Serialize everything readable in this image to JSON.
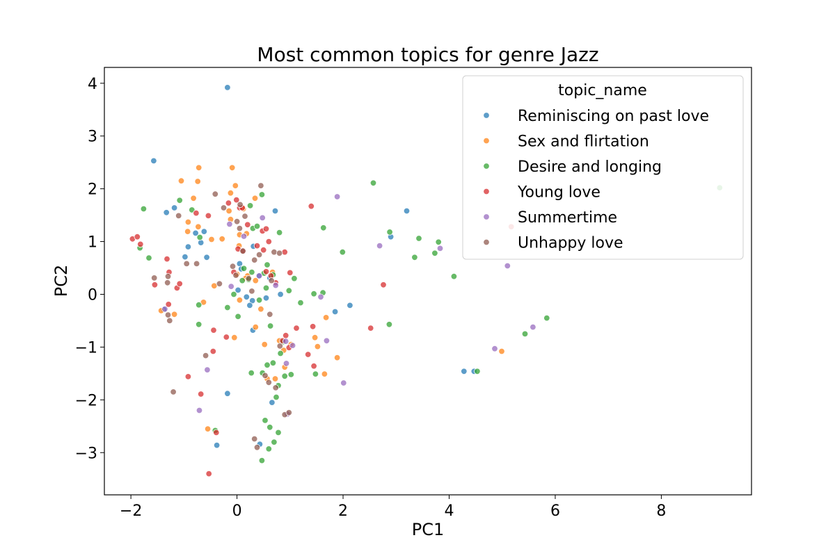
{
  "chart_data": {
    "type": "scatter",
    "title": "Most common topics for genre Jazz",
    "xlabel": "PC1",
    "ylabel": "PC2",
    "xlim": [
      -2.5,
      9.7
    ],
    "ylim": [
      -3.8,
      4.3
    ],
    "xticks": [
      -2,
      0,
      2,
      4,
      6,
      8
    ],
    "yticks": [
      -3,
      -2,
      -1,
      0,
      1,
      2,
      3,
      4
    ],
    "xtick_labels": [
      "−2",
      "0",
      "2",
      "4",
      "6",
      "8"
    ],
    "ytick_labels": [
      "−3",
      "−2",
      "−1",
      "0",
      "1",
      "2",
      "3",
      "4"
    ],
    "grid": false,
    "legend": {
      "title": "topic_name",
      "placement": "top-right"
    },
    "series": [
      {
        "name": "Reminiscing on past love",
        "color": "#1f77b4",
        "points": [
          [
            -0.18,
            3.92
          ],
          [
            -1.57,
            2.53
          ],
          [
            -1.33,
            1.55
          ],
          [
            -1.18,
            1.64
          ],
          [
            -0.98,
            0.71
          ],
          [
            -0.92,
            0.9
          ],
          [
            -0.78,
            1.16
          ],
          [
            -0.62,
            1.19
          ],
          [
            -0.68,
            0.98
          ],
          [
            -0.57,
            0.7
          ],
          [
            -1.38,
            -0.29
          ],
          [
            0.72,
            1.58
          ],
          [
            0.31,
            0.91
          ],
          [
            0.05,
            0.58
          ],
          [
            0.18,
            -0.05
          ],
          [
            0.02,
            0.08
          ],
          [
            0.29,
            -0.12
          ],
          [
            0.55,
            -0.07
          ],
          [
            0.41,
            0.35
          ],
          [
            0.62,
            0.31
          ],
          [
            0.82,
            0.0
          ],
          [
            0.3,
            -0.68
          ],
          [
            -0.18,
            -1.88
          ],
          [
            -0.38,
            -2.86
          ],
          [
            0.66,
            -2.05
          ],
          [
            1.85,
            -0.33
          ],
          [
            2.13,
            -0.21
          ],
          [
            2.9,
            1.09
          ],
          [
            3.2,
            1.58
          ],
          [
            4.28,
            -1.46
          ],
          [
            4.47,
            -1.46
          ],
          [
            0.24,
            -0.21
          ],
          [
            0.43,
            -2.84
          ],
          [
            0.08,
            0.48
          ]
        ]
      },
      {
        "name": "Sex and flirtation",
        "color": "#ff7f0e",
        "points": [
          [
            -1.05,
            2.15
          ],
          [
            -0.82,
            1.82
          ],
          [
            -0.72,
            2.4
          ],
          [
            -0.74,
            2.14
          ],
          [
            -0.09,
            2.4
          ],
          [
            -0.12,
            1.92
          ],
          [
            -0.03,
            2.06
          ],
          [
            -0.15,
            1.58
          ],
          [
            0.12,
            1.62
          ],
          [
            0.34,
            1.82
          ],
          [
            -0.92,
            1.37
          ],
          [
            -0.73,
            1.28
          ],
          [
            -0.93,
            1.19
          ],
          [
            -0.48,
            1.04
          ],
          [
            -0.28,
            1.05
          ],
          [
            0.18,
            1.15
          ],
          [
            -0.12,
            1.42
          ],
          [
            0.05,
            1.13
          ],
          [
            0.04,
            0.92
          ],
          [
            0.0,
            0.38
          ],
          [
            0.2,
            0.35
          ],
          [
            0.35,
            0.26
          ],
          [
            -1.43,
            -0.31
          ],
          [
            -1.18,
            -0.38
          ],
          [
            -0.63,
            -0.15
          ],
          [
            -0.43,
            0.16
          ],
          [
            0.05,
            -0.11
          ],
          [
            0.35,
            -0.62
          ],
          [
            -0.05,
            -0.82
          ],
          [
            0.52,
            -0.95
          ],
          [
            0.8,
            -0.88
          ],
          [
            0.88,
            -1.06
          ],
          [
            0.9,
            -1.38
          ],
          [
            1.02,
            -0.95
          ],
          [
            1.47,
            -0.82
          ],
          [
            1.52,
            -0.99
          ],
          [
            1.65,
            -1.51
          ],
          [
            1.89,
            -1.2
          ],
          [
            1.68,
            -0.44
          ],
          [
            0.57,
            -1.6
          ],
          [
            0.72,
            -1.6
          ],
          [
            -0.55,
            -2.55
          ],
          [
            4.99,
            -1.08
          ],
          [
            0.67,
            0.42
          ],
          [
            0.16,
            0.3
          ],
          [
            0.45,
            -0.28
          ]
        ]
      },
      {
        "name": "Desire and longing",
        "color": "#2ca02c",
        "points": [
          [
            -1.76,
            1.62
          ],
          [
            -1.08,
            1.78
          ],
          [
            -0.85,
            1.6
          ],
          [
            -0.7,
            1.08
          ],
          [
            -1.83,
            0.88
          ],
          [
            -1.66,
            0.69
          ],
          [
            -0.72,
            -0.2
          ],
          [
            -0.72,
            -0.57
          ],
          [
            -0.18,
            -0.25
          ],
          [
            -0.06,
            0.0
          ],
          [
            0.02,
            -0.42
          ],
          [
            0.13,
            0.49
          ],
          [
            0.22,
            0.28
          ],
          [
            0.28,
            0.42
          ],
          [
            0.3,
            1.25
          ],
          [
            0.38,
            1.29
          ],
          [
            0.47,
            1.89
          ],
          [
            0.25,
            1.68
          ],
          [
            0.51,
            0.4
          ],
          [
            0.55,
            0.12
          ],
          [
            0.57,
            0.56
          ],
          [
            0.68,
            0.37
          ],
          [
            0.8,
            1.17
          ],
          [
            0.98,
            0.07
          ],
          [
            1.08,
            0.3
          ],
          [
            1.2,
            -0.16
          ],
          [
            1.45,
            0.01
          ],
          [
            1.62,
            0.03
          ],
          [
            1.63,
            1.26
          ],
          [
            1.99,
            0.8
          ],
          [
            2.57,
            2.11
          ],
          [
            2.88,
            1.18
          ],
          [
            2.87,
            -0.57
          ],
          [
            3.43,
            1.06
          ],
          [
            3.35,
            0.7
          ],
          [
            3.73,
            0.78
          ],
          [
            3.8,
            0.99
          ],
          [
            4.09,
            0.34
          ],
          [
            4.53,
            -1.46
          ],
          [
            5.43,
            -0.75
          ],
          [
            5.84,
            -0.45
          ],
          [
            9.1,
            2.02
          ],
          [
            0.27,
            -1.49
          ],
          [
            0.48,
            -1.49
          ],
          [
            0.57,
            -1.34
          ],
          [
            0.68,
            -1.3
          ],
          [
            0.82,
            -1.12
          ],
          [
            0.87,
            -0.9
          ],
          [
            0.78,
            -1.73
          ],
          [
            0.9,
            -1.55
          ],
          [
            1.02,
            -1.52
          ],
          [
            1.48,
            -1.51
          ],
          [
            0.74,
            -1.95
          ],
          [
            0.53,
            -2.39
          ],
          [
            0.62,
            -2.52
          ],
          [
            0.78,
            -2.62
          ],
          [
            0.7,
            -2.8
          ],
          [
            0.6,
            -2.93
          ],
          [
            0.47,
            -3.15
          ],
          [
            -0.41,
            -2.58
          ],
          [
            0.1,
            0.26
          ],
          [
            0.42,
            -0.11
          ],
          [
            0.63,
            -0.6
          ]
        ]
      },
      {
        "name": "Young love",
        "color": "#d62728",
        "points": [
          [
            -1.97,
            1.05
          ],
          [
            -1.88,
            1.09
          ],
          [
            -1.82,
            0.95
          ],
          [
            -1.55,
            0.18
          ],
          [
            -1.32,
            0.67
          ],
          [
            -1.28,
            0.42
          ],
          [
            -1.13,
            0.12
          ],
          [
            -1.08,
            0.2
          ],
          [
            -1.29,
            -0.19
          ],
          [
            -0.92,
            -1.56
          ],
          [
            -0.77,
            1.54
          ],
          [
            -0.54,
            1.49
          ],
          [
            -0.68,
            -1.89
          ],
          [
            -0.44,
            -0.68
          ],
          [
            -0.45,
            -1.08
          ],
          [
            -0.2,
            -0.81
          ],
          [
            -0.16,
            1.73
          ],
          [
            -0.01,
            1.79
          ],
          [
            0.05,
            1.64
          ],
          [
            0.1,
            1.64
          ],
          [
            0.02,
            0.86
          ],
          [
            0.12,
            0.82
          ],
          [
            0.48,
            1.2
          ],
          [
            0.55,
            1.24
          ],
          [
            0.6,
            1.0
          ],
          [
            0.5,
            0.84
          ],
          [
            0.55,
            0.43
          ],
          [
            0.64,
            0.35
          ],
          [
            0.9,
            0.8
          ],
          [
            1.0,
            0.41
          ],
          [
            0.92,
            -0.78
          ],
          [
            0.98,
            -1.01
          ],
          [
            1.12,
            -0.64
          ],
          [
            1.34,
            -1.14
          ],
          [
            1.43,
            -0.61
          ],
          [
            1.45,
            -1.36
          ],
          [
            1.4,
            1.67
          ],
          [
            2.52,
            -0.64
          ],
          [
            2.76,
            0.18
          ],
          [
            5.17,
            1.28
          ],
          [
            0.86,
            -0.88
          ],
          [
            -0.39,
            -2.62
          ],
          [
            -0.53,
            -3.4
          ],
          [
            0.38,
            0.92
          ],
          [
            -0.06,
            0.42
          ],
          [
            0.73,
            0.22
          ],
          [
            0.2,
            1.32
          ]
        ]
      },
      {
        "name": "Summertime",
        "color": "#9467bd",
        "points": [
          [
            -0.14,
            1.33
          ],
          [
            0.13,
            1.1
          ],
          [
            0.48,
            1.45
          ],
          [
            -0.11,
            0.15
          ],
          [
            -0.56,
            -1.43
          ],
          [
            -0.71,
            -2.2
          ],
          [
            0.42,
            0.35
          ],
          [
            0.73,
            0.17
          ],
          [
            0.92,
            -0.89
          ],
          [
            0.93,
            -1.31
          ],
          [
            1.05,
            -0.97
          ],
          [
            1.58,
            -0.05
          ],
          [
            1.69,
            -0.88
          ],
          [
            1.89,
            1.85
          ],
          [
            2.01,
            -1.68
          ],
          [
            2.69,
            0.92
          ],
          [
            3.83,
            0.87
          ],
          [
            4.86,
            -1.03
          ],
          [
            5.1,
            0.54
          ],
          [
            5.58,
            -0.62
          ],
          [
            -1.36,
            -0.28
          ],
          [
            0.95,
            -2.27
          ]
        ]
      },
      {
        "name": "Unhappy love",
        "color": "#8c564b",
        "points": [
          [
            -1.1,
            1.49
          ],
          [
            -0.41,
            1.9
          ],
          [
            0.45,
            2.06
          ],
          [
            0.0,
            1.38
          ],
          [
            -0.25,
            1.64
          ],
          [
            0.06,
            1.7
          ],
          [
            -0.76,
            0.58
          ],
          [
            -0.95,
            0.58
          ],
          [
            -1.56,
            0.31
          ],
          [
            -1.3,
            0.34
          ],
          [
            -1.31,
            0.22
          ],
          [
            -1.3,
            -0.39
          ],
          [
            -1.27,
            -0.5
          ],
          [
            -1.2,
            -1.85
          ],
          [
            -0.59,
            -1.16
          ],
          [
            -0.08,
            0.53
          ],
          [
            0.11,
            0.82
          ],
          [
            0.33,
            0.65
          ],
          [
            0.22,
            0.3
          ],
          [
            0.42,
            0.75
          ],
          [
            0.65,
            0.26
          ],
          [
            0.7,
            0.8
          ],
          [
            0.8,
            0.78
          ],
          [
            0.62,
            -0.38
          ],
          [
            0.81,
            -0.98
          ],
          [
            0.53,
            -1.54
          ],
          [
            0.6,
            -1.67
          ],
          [
            0.33,
            -2.74
          ],
          [
            0.38,
            -2.9
          ],
          [
            0.73,
            -1.77
          ],
          [
            0.9,
            -2.28
          ],
          [
            0.98,
            -2.24
          ],
          [
            -0.02,
            0.36
          ],
          [
            0.05,
            1.25
          ],
          [
            0.28,
            0.06
          ],
          [
            0.15,
            1.48
          ],
          [
            -0.33,
            0.2
          ]
        ]
      }
    ]
  }
}
